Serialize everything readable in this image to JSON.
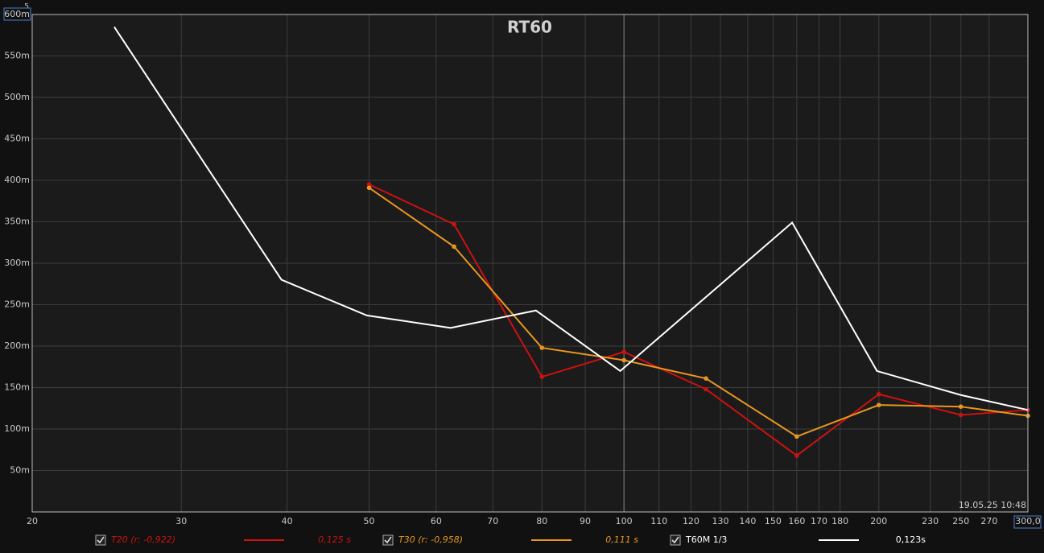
{
  "chart_data": {
    "type": "line",
    "title": "RT60",
    "corner_label": "5",
    "annotation": "19.05.25 10:48",
    "xscale": "log",
    "grid": true,
    "xlim": [
      20,
      300
    ],
    "xticks": [
      20,
      30,
      40,
      50,
      60,
      70,
      80,
      90,
      100,
      110,
      120,
      130,
      140,
      150,
      160,
      170,
      180,
      200,
      230,
      250,
      270,
      {
        "value": 300,
        "label": "300,0"
      }
    ],
    "ylim": [
      0,
      0.6
    ],
    "yticks": [
      {
        "value": 0.05,
        "label": "50m"
      },
      {
        "value": 0.1,
        "label": "100m"
      },
      {
        "value": 0.15,
        "label": "150m"
      },
      {
        "value": 0.2,
        "label": "200m"
      },
      {
        "value": 0.25,
        "label": "250m"
      },
      {
        "value": 0.3,
        "label": "300m"
      },
      {
        "value": 0.35,
        "label": "350m"
      },
      {
        "value": 0.4,
        "label": "400m"
      },
      {
        "value": 0.45,
        "label": "450m"
      },
      {
        "value": 0.5,
        "label": "500m"
      },
      {
        "value": 0.55,
        "label": "550m"
      },
      {
        "value": 0.6,
        "label": "600m"
      }
    ],
    "series": [
      {
        "name": "T20 (r: -0,922)",
        "legend_value": "0,125 s",
        "color": "#cc1111",
        "markers": true,
        "x": [
          50,
          63,
          80,
          100,
          125,
          160,
          200,
          250,
          300
        ],
        "values": [
          0.395,
          0.347,
          0.163,
          0.193,
          0.148,
          0.068,
          0.142,
          0.117,
          0.123
        ]
      },
      {
        "name": "T30 (r: -0,958)",
        "legend_value": "0,111 s",
        "color": "#e8961e",
        "markers": true,
        "x": [
          50,
          63,
          80,
          100,
          125,
          160,
          200,
          250,
          300
        ],
        "values": [
          0.391,
          0.32,
          0.198,
          0.183,
          0.161,
          0.091,
          0.129,
          0.127,
          0.116
        ]
      },
      {
        "name": "T60M 1/3",
        "legend_value": "0,123s",
        "color": "#ffffff",
        "markers": false,
        "x": [
          25,
          39.4,
          49.7,
          62.4,
          78.7,
          99,
          158,
          199,
          250,
          300
        ],
        "values": [
          0.585,
          0.28,
          0.237,
          0.222,
          0.243,
          0.17,
          0.349,
          0.17,
          0.141,
          0.123
        ]
      }
    ]
  }
}
